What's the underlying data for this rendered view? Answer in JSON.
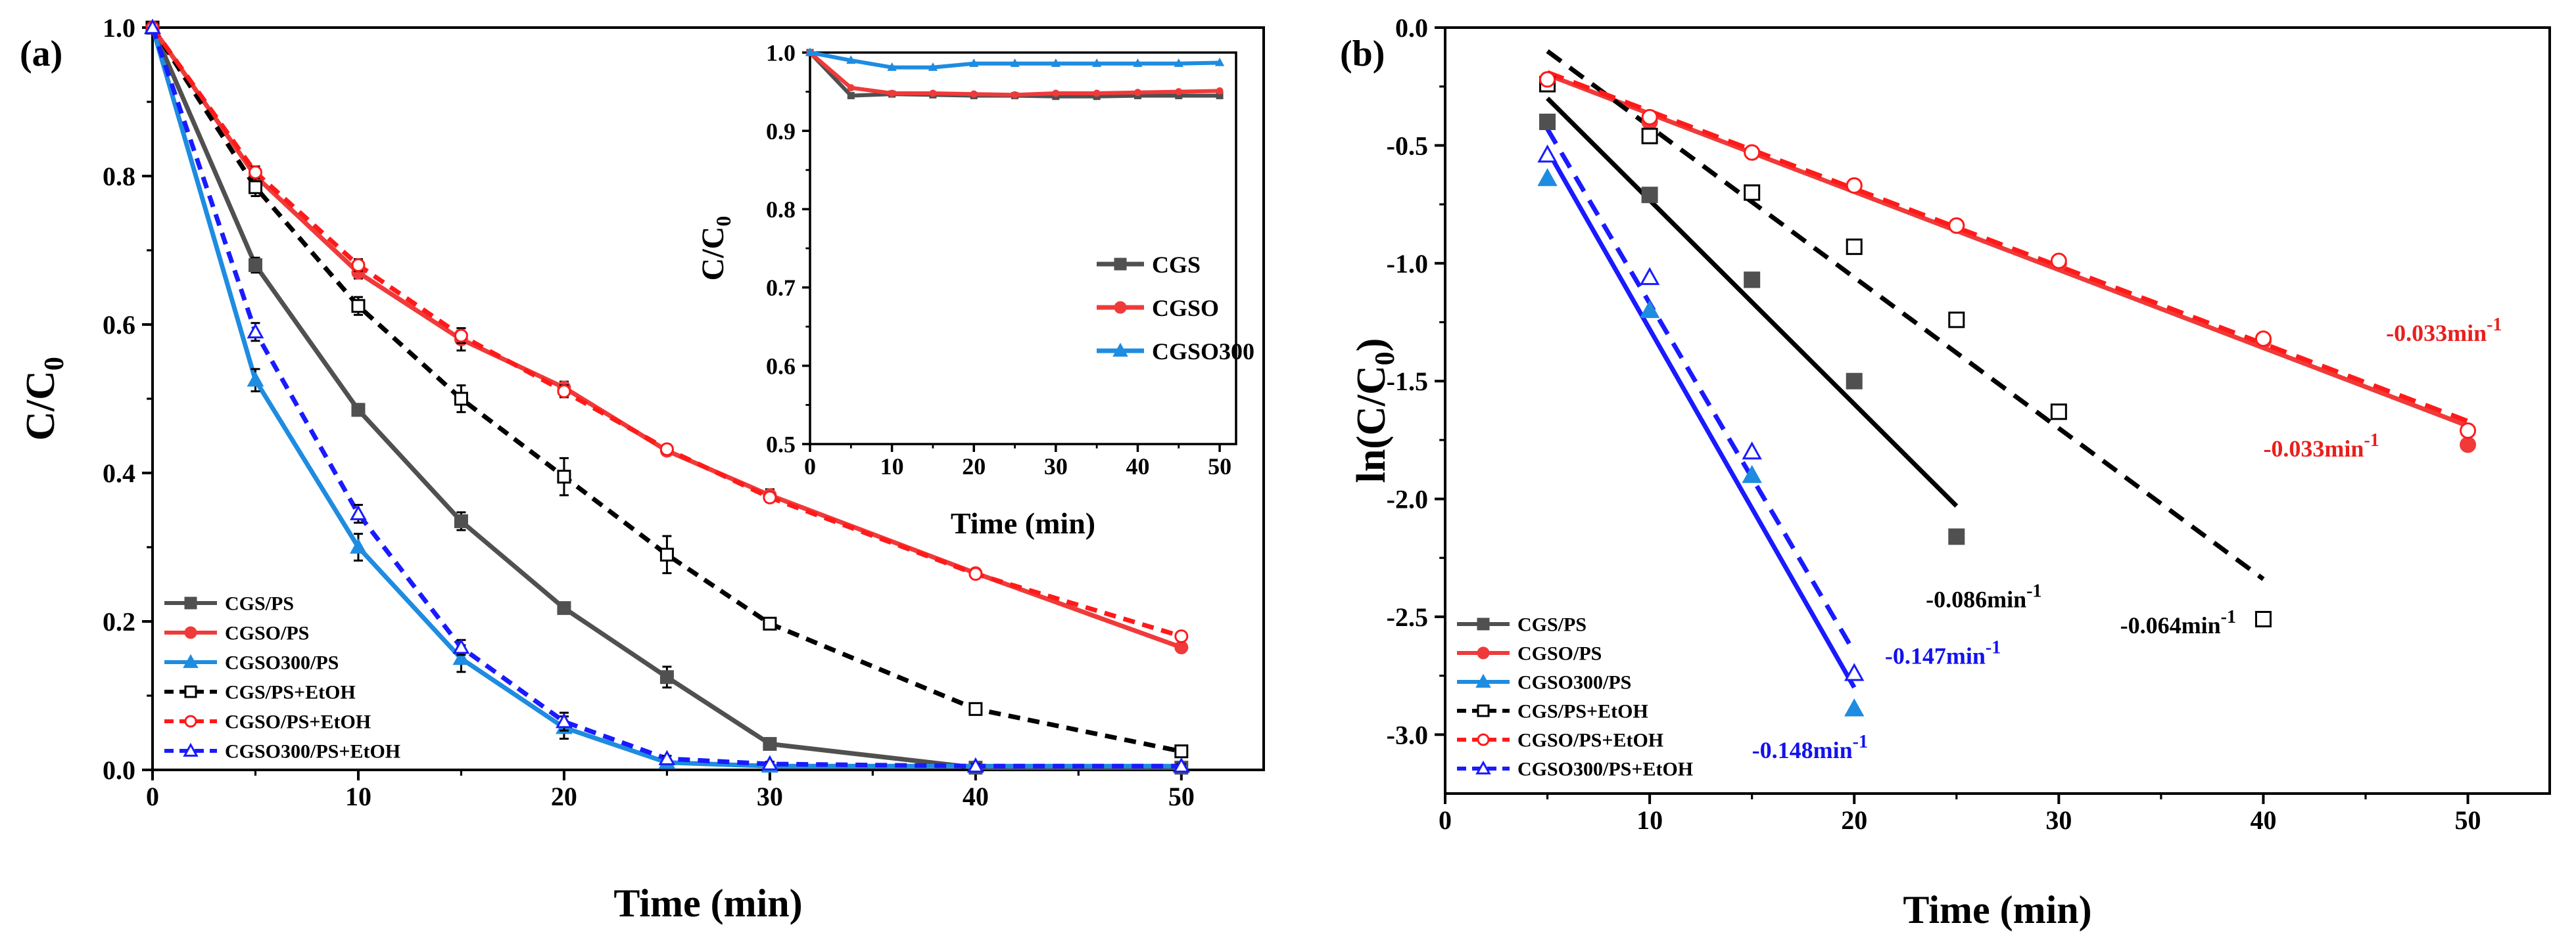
{
  "colors": {
    "gray": "#505050",
    "red": "#f03a3a",
    "blue": "#1e8ce0",
    "black": "#000000",
    "dred": "#ff1a1a",
    "dblue": "#1a1aff",
    "label_red": "#e8201e",
    "label_blue": "#1212ee"
  },
  "chart_data": [
    {
      "id": "a",
      "panel_label": "(a)",
      "type": "line",
      "xlabel": "Time (min)",
      "ylabel": "C/C",
      "ylabel_sub": "0",
      "xlim": [
        0,
        54
      ],
      "ylim": [
        0,
        1.0
      ],
      "xticks": [
        0,
        10,
        20,
        30,
        40,
        50
      ],
      "yticks": [
        0.0,
        0.2,
        0.4,
        0.6,
        0.8,
        1.0
      ],
      "legend_position": "bottom-left",
      "series": [
        {
          "name": "CGS/PS",
          "color": "gray",
          "dashed": false,
          "marker": "square-filled",
          "x": [
            0,
            5,
            10,
            15,
            20,
            25,
            30,
            40,
            50
          ],
          "y": [
            1.0,
            0.68,
            0.485,
            0.335,
            0.218,
            0.125,
            0.035,
            0.003,
            0.003
          ],
          "err": [
            0,
            0.01,
            0.008,
            0.012,
            0.006,
            0.014,
            0.005,
            0.003,
            0.003
          ]
        },
        {
          "name": "CGSO/PS",
          "color": "red",
          "dashed": false,
          "marker": "circle-filled",
          "x": [
            0,
            5,
            10,
            15,
            20,
            25,
            30,
            40,
            50
          ],
          "y": [
            1.0,
            0.8,
            0.67,
            0.58,
            0.515,
            0.43,
            0.37,
            0.265,
            0.165
          ],
          "err": [
            0,
            0.01,
            0.008,
            0.015,
            0.008,
            0.006,
            0.008,
            0.005,
            0.005
          ]
        },
        {
          "name": "CGSO300/PS",
          "color": "blue",
          "dashed": false,
          "marker": "triangle-filled",
          "x": [
            0,
            5,
            10,
            15,
            20,
            25,
            30,
            40,
            50
          ],
          "y": [
            1.0,
            0.525,
            0.3,
            0.15,
            0.057,
            0.01,
            0.005,
            0.005,
            0.005
          ],
          "err": [
            0,
            0.015,
            0.018,
            0.018,
            0.015,
            0.005,
            0.003,
            0.003,
            0.003
          ]
        },
        {
          "name": "CGS/PS+EtOH",
          "color": "black",
          "dashed": true,
          "marker": "square-open",
          "x": [
            0,
            5,
            10,
            15,
            20,
            25,
            30,
            40,
            50
          ],
          "y": [
            1.0,
            0.785,
            0.625,
            0.5,
            0.395,
            0.29,
            0.197,
            0.082,
            0.025
          ],
          "err": [
            0,
            0.012,
            0.012,
            0.018,
            0.025,
            0.025,
            0.006,
            0.005,
            0.004
          ]
        },
        {
          "name": "CGSO/PS+EtOH",
          "color": "dred",
          "dashed": true,
          "marker": "circle-open",
          "x": [
            0,
            5,
            10,
            15,
            20,
            25,
            30,
            40,
            50
          ],
          "y": [
            1.0,
            0.805,
            0.68,
            0.585,
            0.51,
            0.432,
            0.367,
            0.264,
            0.18
          ],
          "err": [
            0,
            0.008,
            0.008,
            0.01,
            0.008,
            0.006,
            0.006,
            0.005,
            0.005
          ]
        },
        {
          "name": "CGSO300/PS+EtOH",
          "color": "dblue",
          "dashed": true,
          "marker": "triangle-open",
          "x": [
            0,
            5,
            10,
            15,
            20,
            25,
            30,
            40,
            50
          ],
          "y": [
            1.0,
            0.59,
            0.345,
            0.165,
            0.065,
            0.015,
            0.008,
            0.005,
            0.005
          ],
          "err": [
            0,
            0.012,
            0.012,
            0.01,
            0.012,
            0.004,
            0.003,
            0.003,
            0.003
          ]
        }
      ],
      "inset": {
        "type": "line",
        "xlabel": "Time (min)",
        "ylabel": "C/C",
        "ylabel_sub": "0",
        "xlim": [
          0,
          52
        ],
        "ylim": [
          0.5,
          1.0
        ],
        "xticks": [
          0,
          10,
          20,
          30,
          40,
          50
        ],
        "yticks": [
          0.5,
          0.6,
          0.7,
          0.8,
          0.9,
          1.0
        ],
        "legend_position": "right",
        "series": [
          {
            "name": "CGS",
            "color": "gray",
            "marker": "square-filled",
            "x": [
              0,
              5,
              10,
              15,
              20,
              25,
              30,
              35,
              40,
              45,
              50
            ],
            "y": [
              1.0,
              0.945,
              0.947,
              0.946,
              0.945,
              0.945,
              0.944,
              0.944,
              0.945,
              0.945,
              0.945
            ]
          },
          {
            "name": "CGSO",
            "color": "red",
            "marker": "circle-filled",
            "x": [
              0,
              5,
              10,
              15,
              20,
              25,
              30,
              35,
              40,
              45,
              50
            ],
            "y": [
              1.0,
              0.955,
              0.948,
              0.948,
              0.947,
              0.946,
              0.948,
              0.948,
              0.949,
              0.95,
              0.951
            ]
          },
          {
            "name": "CGSO300",
            "color": "blue",
            "marker": "triangle-filled",
            "x": [
              0,
              5,
              10,
              15,
              20,
              25,
              30,
              35,
              40,
              45,
              50
            ],
            "y": [
              1.0,
              0.99,
              0.981,
              0.981,
              0.986,
              0.986,
              0.986,
              0.986,
              0.986,
              0.986,
              0.987
            ]
          }
        ]
      }
    },
    {
      "id": "b",
      "panel_label": "(b)",
      "type": "scatter",
      "xlabel": "Time (min)",
      "ylabel": "ln(C/C",
      "ylabel_sub": "0",
      "ylabel_tail": ")",
      "xlim": [
        0,
        54
      ],
      "ylim": [
        -3.25,
        0
      ],
      "xticks": [
        0,
        10,
        20,
        30,
        40,
        50
      ],
      "yticks": [
        0.0,
        -0.5,
        -1.0,
        -1.5,
        -2.0,
        -2.5,
        -3.0
      ],
      "legend_position": "bottom-left",
      "series": [
        {
          "name": "CGS/PS",
          "color": "gray",
          "dashed": false,
          "marker": "square-filled",
          "x": [
            5,
            10,
            15,
            20,
            25
          ],
          "y": [
            -0.4,
            -0.71,
            -1.07,
            -1.5,
            -2.16
          ],
          "fit": {
            "x": [
              5,
              25
            ],
            "y": [
              -0.3,
              -2.03
            ],
            "color": "black"
          }
        },
        {
          "name": "CGSO/PS",
          "color": "red",
          "dashed": false,
          "marker": "circle-filled",
          "x": [
            5,
            10,
            15,
            20,
            25,
            30,
            40,
            50
          ],
          "y": [
            -0.22,
            -0.4,
            -0.53,
            -0.67,
            -0.84,
            -1.0,
            -1.33,
            -1.77
          ],
          "fit": {
            "x": [
              5,
              50
            ],
            "y": [
              -0.2,
              -1.69
            ],
            "color": "red"
          }
        },
        {
          "name": "CGSO300/PS",
          "color": "blue",
          "dashed": false,
          "marker": "triangle-filled",
          "x": [
            5,
            10,
            15,
            20
          ],
          "y": [
            -0.64,
            -1.2,
            -1.9,
            -2.89
          ],
          "fit": {
            "x": [
              5,
              20
            ],
            "y": [
              -0.52,
              -2.8
            ],
            "color": "dblue"
          }
        },
        {
          "name": "CGS/PS+EtOH",
          "color": "black",
          "dashed": true,
          "marker": "square-open",
          "x": [
            5,
            10,
            15,
            20,
            25,
            30,
            40
          ],
          "y": [
            -0.24,
            -0.46,
            -0.7,
            -0.93,
            -1.24,
            -1.63,
            -2.51
          ],
          "fit": {
            "x": [
              5,
              40
            ],
            "y": [
              -0.1,
              -2.34
            ],
            "color": "black"
          }
        },
        {
          "name": "CGSO/PS+EtOH",
          "color": "dred",
          "dashed": true,
          "marker": "circle-open",
          "x": [
            5,
            10,
            15,
            20,
            25,
            30,
            40,
            50
          ],
          "y": [
            -0.22,
            -0.38,
            -0.53,
            -0.67,
            -0.84,
            -0.99,
            -1.32,
            -1.71
          ],
          "fit": {
            "x": [
              5,
              50
            ],
            "y": [
              -0.19,
              -1.67
            ],
            "color": "dred"
          }
        },
        {
          "name": "CGSO300/PS+EtOH",
          "color": "dblue",
          "dashed": true,
          "marker": "triangle-open",
          "x": [
            5,
            10,
            15,
            20
          ],
          "y": [
            -0.54,
            -1.06,
            -1.8,
            -2.74
          ],
          "fit": {
            "x": [
              5,
              20
            ],
            "y": [
              -0.43,
              -2.65
            ],
            "color": "dblue"
          }
        }
      ],
      "annotations": [
        {
          "text": "-0.033min",
          "sup": "-1",
          "color": "label_red",
          "x": 46,
          "y": -1.33
        },
        {
          "text": "-0.033min",
          "sup": "-1",
          "color": "label_red",
          "x": 40,
          "y": -1.82
        },
        {
          "text": "-0.086min",
          "sup": "-1",
          "color": "black",
          "x": 23.5,
          "y": -2.46
        },
        {
          "text": "-0.064min",
          "sup": "-1",
          "color": "black",
          "x": 33,
          "y": -2.57
        },
        {
          "text": "-0.147min",
          "sup": "-1",
          "color": "label_blue",
          "x": 21.5,
          "y": -2.7
        },
        {
          "text": "-0.148min",
          "sup": "-1",
          "color": "label_blue",
          "x": 15,
          "y": -3.1
        }
      ]
    }
  ]
}
